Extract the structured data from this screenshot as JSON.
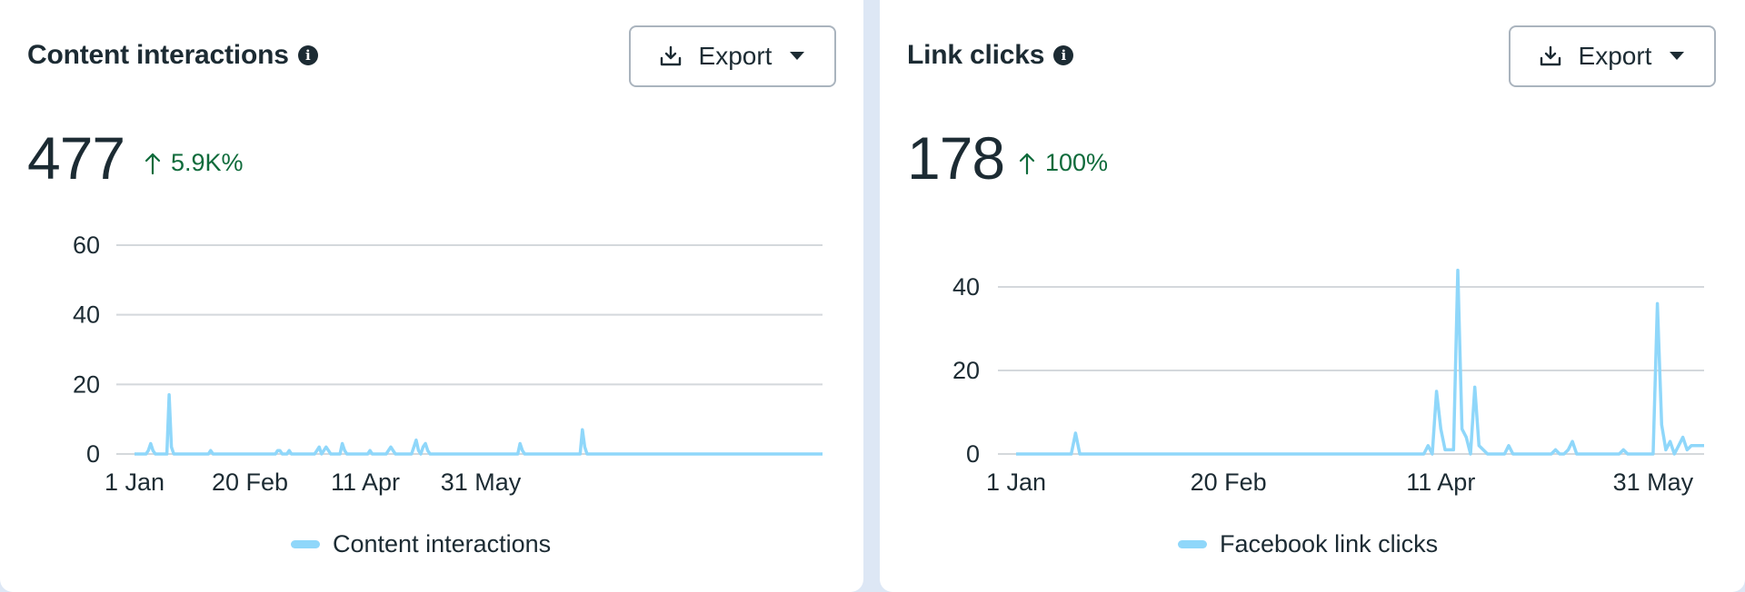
{
  "panels": [
    {
      "title": "Content interactions",
      "export_label": "Export",
      "value": "477",
      "delta": "5.9K%",
      "legend": "Content interactions"
    },
    {
      "title": "Link clicks",
      "export_label": "Export",
      "value": "178",
      "delta": "100%",
      "legend": "Facebook link clicks"
    }
  ],
  "colors": {
    "line": "#8fd7fa",
    "delta": "#0f6b3b",
    "grid": "#d4d8dc"
  },
  "icons": {
    "info": "info-icon",
    "download": "download-icon",
    "caret": "caret-down-icon",
    "arrow": "arrow-up-icon"
  },
  "chart_data": [
    {
      "type": "line",
      "x_tick_labels": [
        "1 Jan",
        "20 Feb",
        "11 Apr",
        "31 May"
      ],
      "x_tick_indices": [
        0,
        50,
        100,
        150
      ],
      "y_ticks": [
        0,
        20,
        40,
        60
      ],
      "ylim": [
        0,
        60
      ],
      "grid": true,
      "legend_position": "bottom-center",
      "series": [
        {
          "name": "Content interactions",
          "values": [
            0,
            0,
            0,
            0,
            0,
            0,
            1,
            3,
            1,
            0,
            0,
            0,
            0,
            0,
            0,
            17,
            2,
            0,
            0,
            0,
            0,
            0,
            0,
            0,
            0,
            0,
            0,
            0,
            0,
            0,
            0,
            0,
            0,
            1,
            0,
            0,
            0,
            0,
            0,
            0,
            0,
            0,
            0,
            0,
            0,
            0,
            0,
            0,
            0,
            0,
            0,
            0,
            0,
            0,
            0,
            0,
            0,
            0,
            0,
            0,
            0,
            0,
            1,
            1,
            0,
            0,
            0,
            1,
            0,
            0,
            0,
            0,
            0,
            0,
            0,
            0,
            0,
            0,
            0,
            1,
            2,
            0,
            1,
            2,
            1,
            0,
            0,
            0,
            0,
            0,
            3,
            1,
            0,
            0,
            0,
            0,
            0,
            0,
            0,
            0,
            0,
            0,
            1,
            0,
            0,
            0,
            0,
            0,
            0,
            0,
            1,
            2,
            1,
            0,
            0,
            0,
            0,
            0,
            0,
            0,
            0,
            2,
            4,
            1,
            0,
            2,
            3,
            1,
            0,
            0,
            0,
            0,
            0,
            0,
            0,
            0,
            0,
            0,
            0,
            0,
            0,
            0,
            0,
            0,
            0,
            0,
            0,
            0,
            0,
            0,
            0,
            0,
            0,
            0,
            0,
            0,
            0,
            0,
            0,
            0,
            0,
            0,
            0,
            0,
            0,
            0,
            0,
            3,
            1,
            0,
            0,
            0,
            0,
            0,
            0,
            0,
            0,
            0,
            0,
            0,
            0,
            0,
            0,
            0,
            0,
            0,
            0,
            0,
            0,
            0,
            0,
            0,
            0,
            0,
            7,
            2,
            0,
            0,
            0,
            0,
            0,
            0,
            0,
            0,
            0,
            0,
            0,
            0,
            0,
            0,
            0,
            0,
            0,
            0,
            0,
            0,
            0,
            0,
            0,
            0,
            0,
            0,
            0,
            0,
            0,
            0,
            0,
            0,
            0,
            0,
            0,
            0,
            0,
            0,
            0,
            0,
            0,
            0,
            0,
            0,
            0,
            0,
            0,
            0,
            0,
            0,
            0,
            0,
            0,
            0,
            0,
            0,
            0,
            0,
            0,
            0,
            0,
            0,
            0,
            0,
            0,
            0,
            0,
            0,
            0,
            0,
            0,
            0,
            0,
            0,
            0,
            0,
            0,
            0,
            0,
            0,
            0,
            0,
            0,
            0,
            0,
            0,
            0,
            0,
            0,
            0,
            0,
            0,
            0,
            0,
            0,
            0,
            0,
            0,
            0,
            0,
            0,
            0,
            0
          ]
        }
      ]
    },
    {
      "type": "line",
      "x_tick_labels": [
        "1 Jan",
        "20 Feb",
        "11 Apr",
        "31 May"
      ],
      "x_tick_indices": [
        0,
        50,
        100,
        150
      ],
      "y_ticks": [
        0,
        20,
        40
      ],
      "ylim": [
        0,
        50
      ],
      "grid": true,
      "legend_position": "bottom-center",
      "series": [
        {
          "name": "Facebook link clicks",
          "values": [
            0,
            0,
            0,
            0,
            0,
            0,
            0,
            0,
            0,
            0,
            0,
            0,
            0,
            0,
            5,
            0,
            0,
            0,
            0,
            0,
            0,
            0,
            0,
            0,
            0,
            0,
            0,
            0,
            0,
            0,
            0,
            0,
            0,
            0,
            0,
            0,
            0,
            0,
            0,
            0,
            0,
            0,
            0,
            0,
            0,
            0,
            0,
            0,
            0,
            0,
            0,
            0,
            0,
            0,
            0,
            0,
            0,
            0,
            0,
            0,
            0,
            0,
            0,
            0,
            0,
            0,
            0,
            0,
            0,
            0,
            0,
            0,
            0,
            0,
            0,
            0,
            0,
            0,
            0,
            0,
            0,
            0,
            0,
            0,
            0,
            0,
            0,
            0,
            0,
            0,
            0,
            0,
            0,
            0,
            0,
            0,
            0,
            2,
            0,
            15,
            6,
            1,
            1,
            1,
            44,
            6,
            4,
            0,
            16,
            2,
            1,
            0,
            0,
            0,
            0,
            0,
            2,
            0,
            0,
            0,
            0,
            0,
            0,
            0,
            0,
            0,
            0,
            1,
            0,
            0,
            1,
            3,
            0,
            0,
            0,
            0,
            0,
            0,
            0,
            0,
            0,
            0,
            0,
            1,
            0,
            0,
            0,
            0,
            0,
            0,
            0,
            36,
            7,
            1,
            3,
            0,
            2,
            4,
            1,
            2,
            2,
            2,
            2
          ]
        }
      ]
    }
  ]
}
